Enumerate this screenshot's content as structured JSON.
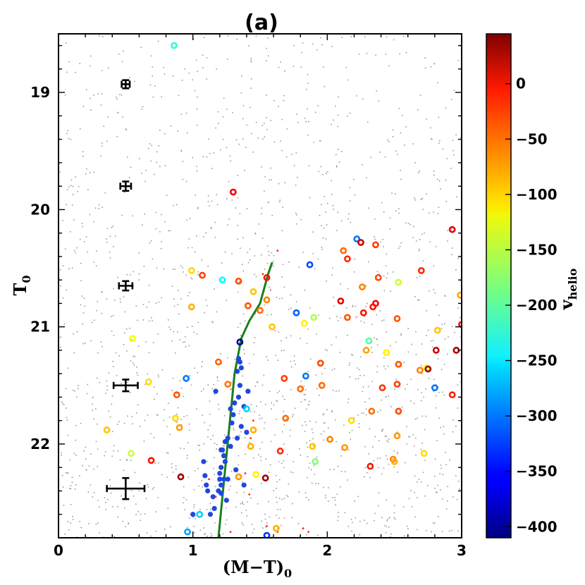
{
  "chart_data": {
    "type": "scatter",
    "title": "(a)",
    "xlabel": "(M−T)",
    "xlabel_subscript": "0",
    "ylabel": "T",
    "ylabel_subscript": "0",
    "xlim": [
      0,
      3
    ],
    "ylim": [
      22.8,
      18.5
    ],
    "x_ticks": [
      0,
      1,
      2,
      3
    ],
    "x_tick_labels": [
      "0",
      "1",
      "2",
      "3"
    ],
    "y_ticks": [
      19,
      20,
      21,
      22
    ],
    "y_tick_labels": [
      "19",
      "20",
      "21",
      "22"
    ],
    "colorbar": {
      "label": "v",
      "label_subscript": "helio",
      "range": [
        -410,
        45
      ],
      "ticks": [
        0,
        -50,
        -100,
        -150,
        -200,
        -250,
        -300,
        -350,
        -400
      ],
      "tick_labels": [
        "0",
        "−50",
        "−100",
        "−150",
        "−200",
        "−250",
        "−300",
        "−350",
        "−400"
      ]
    },
    "isochrone": {
      "color": "#1a7f1a",
      "points": [
        [
          1.19,
          22.8
        ],
        [
          1.22,
          22.45
        ],
        [
          1.25,
          22.1
        ],
        [
          1.28,
          21.75
        ],
        [
          1.31,
          21.4
        ],
        [
          1.36,
          21.1
        ],
        [
          1.42,
          20.95
        ],
        [
          1.5,
          20.8
        ],
        [
          1.56,
          20.55
        ],
        [
          1.59,
          20.45
        ]
      ]
    },
    "error_bars": [
      {
        "x": 0.5,
        "y": 18.93,
        "xerr": 0.03,
        "yerr": 0.035
      },
      {
        "x": 0.5,
        "y": 19.8,
        "xerr": 0.04,
        "yerr": 0.04
      },
      {
        "x": 0.5,
        "y": 20.65,
        "xerr": 0.05,
        "yerr": 0.04
      },
      {
        "x": 0.5,
        "y": 21.5,
        "xerr": 0.09,
        "yerr": 0.05
      },
      {
        "x": 0.5,
        "y": 22.38,
        "xerr": 0.14,
        "yerr": 0.09
      }
    ],
    "background_stars": {
      "count": 2400,
      "seed": 11,
      "color": "#9a9a9a"
    },
    "rgb_members": {
      "color": "#1f47e0",
      "points": [
        [
          1.34,
          21.27
        ],
        [
          1.35,
          21.3
        ],
        [
          1.36,
          21.35
        ],
        [
          1.33,
          21.38
        ],
        [
          1.35,
          21.5
        ],
        [
          1.34,
          21.6
        ],
        [
          1.31,
          21.65
        ],
        [
          1.28,
          21.7
        ],
        [
          1.3,
          21.75
        ],
        [
          1.29,
          21.82
        ],
        [
          1.26,
          21.95
        ],
        [
          1.24,
          21.98
        ],
        [
          1.22,
          22.05
        ],
        [
          1.23,
          22.1
        ],
        [
          1.24,
          22.15
        ],
        [
          1.21,
          22.2
        ],
        [
          1.2,
          22.25
        ],
        [
          1.23,
          22.3
        ],
        [
          1.21,
          22.35
        ],
        [
          1.19,
          22.4
        ],
        [
          1.21,
          22.42
        ],
        [
          1.09,
          22.27
        ],
        [
          1.1,
          22.35
        ],
        [
          1.15,
          22.45
        ],
        [
          1.16,
          22.55
        ],
        [
          1.13,
          22.6
        ],
        [
          1.2,
          22.3
        ],
        [
          1.25,
          22.48
        ],
        [
          1.17,
          21.55
        ],
        [
          1.38,
          21.68
        ],
        [
          1.41,
          21.55
        ],
        [
          1.36,
          21.85
        ],
        [
          1.33,
          21.95
        ],
        [
          1.4,
          21.9
        ],
        [
          1.28,
          22.02
        ],
        [
          1.32,
          22.22
        ],
        [
          1.38,
          22.35
        ],
        [
          1.21,
          22.05
        ],
        [
          1.26,
          22.3
        ],
        [
          1.08,
          22.15
        ],
        [
          1.11,
          22.4
        ],
        [
          1.0,
          22.6
        ]
      ]
    },
    "red_points": [
      [
        1.52,
        20.55
      ],
      [
        1.63,
        20.35
      ],
      [
        1.12,
        22.3
      ],
      [
        1.17,
        22.45
      ],
      [
        1.39,
        22.25
      ],
      [
        1.42,
        22.43
      ],
      [
        1.45,
        21.8
      ],
      [
        1.43,
        21.95
      ],
      [
        1.28,
        22.75
      ],
      [
        1.55,
        22.7
      ],
      [
        1.63,
        22.75
      ],
      [
        1.82,
        22.72
      ],
      [
        1.86,
        22.75
      ]
    ],
    "velocity_stars": [
      {
        "x": 0.86,
        "y": 18.6,
        "v": -220
      },
      {
        "x": 1.3,
        "y": 19.85,
        "v": -5
      },
      {
        "x": 2.22,
        "y": 20.25,
        "v": -300
      },
      {
        "x": 2.25,
        "y": 20.28,
        "v": 10
      },
      {
        "x": 2.36,
        "y": 20.3,
        "v": -40
      },
      {
        "x": 1.87,
        "y": 20.47,
        "v": -320
      },
      {
        "x": 2.12,
        "y": 20.35,
        "v": -60
      },
      {
        "x": 2.15,
        "y": 20.42,
        "v": -30
      },
      {
        "x": 2.93,
        "y": 20.17,
        "v": 0
      },
      {
        "x": 0.99,
        "y": 20.52,
        "v": -110
      },
      {
        "x": 1.07,
        "y": 20.56,
        "v": -40
      },
      {
        "x": 1.22,
        "y": 20.6,
        "v": -240
      },
      {
        "x": 1.34,
        "y": 20.61,
        "v": -45
      },
      {
        "x": 1.55,
        "y": 20.58,
        "v": -20
      },
      {
        "x": 2.38,
        "y": 20.58,
        "v": -45
      },
      {
        "x": 2.7,
        "y": 20.52,
        "v": -30
      },
      {
        "x": 2.53,
        "y": 20.62,
        "v": -150
      },
      {
        "x": 2.26,
        "y": 20.66,
        "v": -70
      },
      {
        "x": 1.45,
        "y": 20.7,
        "v": -100
      },
      {
        "x": 1.55,
        "y": 20.77,
        "v": -70
      },
      {
        "x": 1.41,
        "y": 20.82,
        "v": -50
      },
      {
        "x": 1.5,
        "y": 20.86,
        "v": -60
      },
      {
        "x": 0.99,
        "y": 20.83,
        "v": -90
      },
      {
        "x": 2.99,
        "y": 20.73,
        "v": -85
      },
      {
        "x": 2.1,
        "y": 20.78,
        "v": 0
      },
      {
        "x": 2.15,
        "y": 20.92,
        "v": -50
      },
      {
        "x": 2.36,
        "y": 20.8,
        "v": -10
      },
      {
        "x": 2.34,
        "y": 20.83,
        "v": -20
      },
      {
        "x": 2.27,
        "y": 20.88,
        "v": -20
      },
      {
        "x": 2.52,
        "y": 20.93,
        "v": -50
      },
      {
        "x": 1.77,
        "y": 20.88,
        "v": -310
      },
      {
        "x": 1.9,
        "y": 20.92,
        "v": -160
      },
      {
        "x": 1.83,
        "y": 20.97,
        "v": -120
      },
      {
        "x": 1.59,
        "y": 21.0,
        "v": -100
      },
      {
        "x": 3.0,
        "y": 20.98,
        "v": -15
      },
      {
        "x": 2.82,
        "y": 21.03,
        "v": -100
      },
      {
        "x": 2.31,
        "y": 21.12,
        "v": -200
      },
      {
        "x": 1.35,
        "y": 21.13,
        "v": -400
      },
      {
        "x": 0.55,
        "y": 21.1,
        "v": -130
      },
      {
        "x": 2.29,
        "y": 21.2,
        "v": -85
      },
      {
        "x": 2.44,
        "y": 21.22,
        "v": -120
      },
      {
        "x": 2.81,
        "y": 21.2,
        "v": 10
      },
      {
        "x": 2.96,
        "y": 21.2,
        "v": 25
      },
      {
        "x": 1.19,
        "y": 21.3,
        "v": -55
      },
      {
        "x": 1.95,
        "y": 21.31,
        "v": -45
      },
      {
        "x": 2.53,
        "y": 21.32,
        "v": -50
      },
      {
        "x": 2.69,
        "y": 21.37,
        "v": -70
      },
      {
        "x": 2.74,
        "y": 21.35,
        "v": -130
      },
      {
        "x": 2.75,
        "y": 21.36,
        "v": 30
      },
      {
        "x": 0.95,
        "y": 21.44,
        "v": -300
      },
      {
        "x": 1.84,
        "y": 21.42,
        "v": -300
      },
      {
        "x": 1.68,
        "y": 21.44,
        "v": -40
      },
      {
        "x": 0.67,
        "y": 21.47,
        "v": -110
      },
      {
        "x": 1.26,
        "y": 21.49,
        "v": -65
      },
      {
        "x": 1.96,
        "y": 21.5,
        "v": -60
      },
      {
        "x": 2.41,
        "y": 21.52,
        "v": -35
      },
      {
        "x": 2.52,
        "y": 21.49,
        "v": -40
      },
      {
        "x": 2.8,
        "y": 21.52,
        "v": -300
      },
      {
        "x": 1.8,
        "y": 21.53,
        "v": -60
      },
      {
        "x": 2.93,
        "y": 21.58,
        "v": -25
      },
      {
        "x": 0.88,
        "y": 21.58,
        "v": -50
      },
      {
        "x": 1.4,
        "y": 21.7,
        "v": -260
      },
      {
        "x": 2.33,
        "y": 21.72,
        "v": -60
      },
      {
        "x": 2.53,
        "y": 21.72,
        "v": -45
      },
      {
        "x": 0.87,
        "y": 21.78,
        "v": -110
      },
      {
        "x": 1.69,
        "y": 21.78,
        "v": -60
      },
      {
        "x": 2.18,
        "y": 21.8,
        "v": -110
      },
      {
        "x": 0.36,
        "y": 21.88,
        "v": -100
      },
      {
        "x": 0.9,
        "y": 21.86,
        "v": -80
      },
      {
        "x": 1.45,
        "y": 21.88,
        "v": -90
      },
      {
        "x": 2.52,
        "y": 21.93,
        "v": -80
      },
      {
        "x": 2.02,
        "y": 21.96,
        "v": -70
      },
      {
        "x": 1.43,
        "y": 22.02,
        "v": -90
      },
      {
        "x": 1.89,
        "y": 22.02,
        "v": -100
      },
      {
        "x": 2.13,
        "y": 22.03,
        "v": -80
      },
      {
        "x": 1.65,
        "y": 22.06,
        "v": -30
      },
      {
        "x": 0.54,
        "y": 22.08,
        "v": -150
      },
      {
        "x": 2.72,
        "y": 22.08,
        "v": -110
      },
      {
        "x": 0.69,
        "y": 22.14,
        "v": -20
      },
      {
        "x": 1.91,
        "y": 22.15,
        "v": -180
      },
      {
        "x": 2.49,
        "y": 22.13,
        "v": -70
      },
      {
        "x": 2.5,
        "y": 22.15,
        "v": -90
      },
      {
        "x": 2.32,
        "y": 22.19,
        "v": -20
      },
      {
        "x": 0.91,
        "y": 22.28,
        "v": 30
      },
      {
        "x": 1.34,
        "y": 22.28,
        "v": -80
      },
      {
        "x": 1.47,
        "y": 22.26,
        "v": -120
      },
      {
        "x": 1.54,
        "y": 22.29,
        "v": 35
      },
      {
        "x": 1.05,
        "y": 22.6,
        "v": -260
      },
      {
        "x": 1.62,
        "y": 22.72,
        "v": -90
      },
      {
        "x": 0.96,
        "y": 22.75,
        "v": -280
      },
      {
        "x": 1.55,
        "y": 22.78,
        "v": -330
      }
    ]
  }
}
